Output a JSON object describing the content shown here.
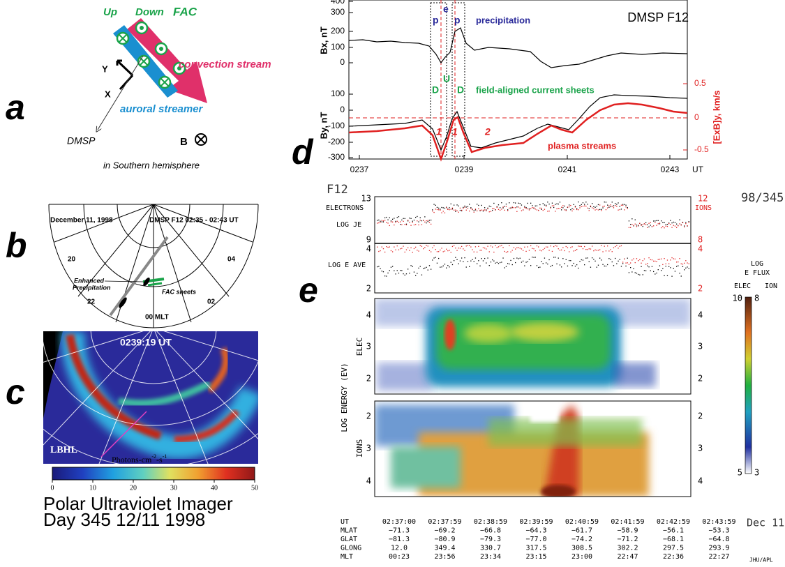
{
  "panel_a": {
    "label": "a",
    "up": "Up",
    "down": "Down",
    "fac": "FAC",
    "convection": "convection stream",
    "y_axis": "Y",
    "x_axis": "X",
    "streamer": "auroral streamer",
    "dmsp": "DMSP",
    "b_field": "B",
    "caption": "in Southern hemisphere"
  },
  "panel_b": {
    "label": "b",
    "date": "December 11, 1998",
    "satellite": "DMSP  F12  02:35 - 02:43 UT",
    "mlt_labels": [
      20,
      "04",
      22,
      "02"
    ],
    "mlt_bottom": "00  MLT",
    "enhanced": [
      "Enhanced",
      "Precipitation"
    ],
    "fac_sheets": "FAC sheets"
  },
  "panel_c": {
    "label": "c",
    "time": "0239:19 UT",
    "filter": "LBHL",
    "units": "Photons-cm",
    "units_exp1": "-2",
    "units_mid": "-s",
    "units_exp2": "-1",
    "colorbar_ticks": [
      0,
      10,
      20,
      30,
      40,
      50
    ],
    "title_lines": [
      "Polar Ultraviolet Imager",
      "Day 345 12/11 1998"
    ]
  },
  "panel_d": {
    "label": "d",
    "title": "DMSP  F12",
    "bx_label": "Bx, nT",
    "by_label": "By, nT",
    "exb_label": "[ExB]y, km/s",
    "bx_ticks": [
      400,
      300,
      200,
      100,
      0
    ],
    "by_ticks": [
      100,
      0,
      -100,
      -200,
      -300
    ],
    "exb_ticks": [
      0.5,
      0,
      -0.5
    ],
    "x_ticks": [
      "0237",
      "0239",
      "0241",
      "0243"
    ],
    "x_unit": "UT",
    "p1": "p",
    "e": "e",
    "p2": "p",
    "precipitation": "precipitation",
    "u": "U",
    "d1": "D",
    "d2": "D",
    "fac_sheets": "field-aligned current sheets",
    "n1a": "1",
    "n1b": "1",
    "n2": "2",
    "plasma": "plasma streams"
  },
  "panel_e": {
    "label": "e",
    "sat": "F12",
    "day": "98/345",
    "electrons": "ELECTRONS",
    "ions": "IONS",
    "log_je": "LOG JE",
    "log_eave": "LOG E AVE",
    "left_ticks": [
      13,
      9,
      4,
      2
    ],
    "right_ticks": [
      12,
      8,
      4,
      2
    ],
    "flux_title": [
      "LOG",
      "E FLUX"
    ],
    "flux_elec": "ELEC",
    "flux_ion": "ION",
    "flux_top": [
      10,
      8
    ],
    "flux_bottom": [
      5,
      3
    ],
    "energy_label": "LOG ENERGY (EV)",
    "elec_label": "ELEC",
    "ions_label": "IONS",
    "elec_ticks": [
      4,
      3,
      2
    ],
    "ion_ticks": [
      2,
      3,
      4
    ]
  },
  "table": {
    "rows": [
      {
        "label": "UT",
        "values": [
          "02:37:00",
          "02:37:59",
          "02:38:59",
          "02:39:59",
          "02:40:59",
          "02:41:59",
          "02:42:59",
          "02:43:59"
        ]
      },
      {
        "label": "MLAT",
        "values": [
          "−71.3",
          "−69.2",
          "−66.8",
          "−64.3",
          "−61.7",
          "−58.9",
          "−56.1",
          "−53.3"
        ]
      },
      {
        "label": "GLAT",
        "values": [
          "−81.3",
          "−80.9",
          "−79.3",
          "−77.0",
          "−74.2",
          "−71.2",
          "−68.1",
          "−64.8"
        ]
      },
      {
        "label": "GLONG",
        "values": [
          "12.0",
          "349.4",
          "330.7",
          "317.5",
          "308.5",
          "302.2",
          "297.5",
          "293.9"
        ]
      },
      {
        "label": "MLT",
        "values": [
          "00:23",
          "23:56",
          "23:34",
          "23:15",
          "23:00",
          "22:47",
          "22:36",
          "22:27"
        ]
      }
    ],
    "date": "Dec 11",
    "credit": "JHU/APL"
  }
}
